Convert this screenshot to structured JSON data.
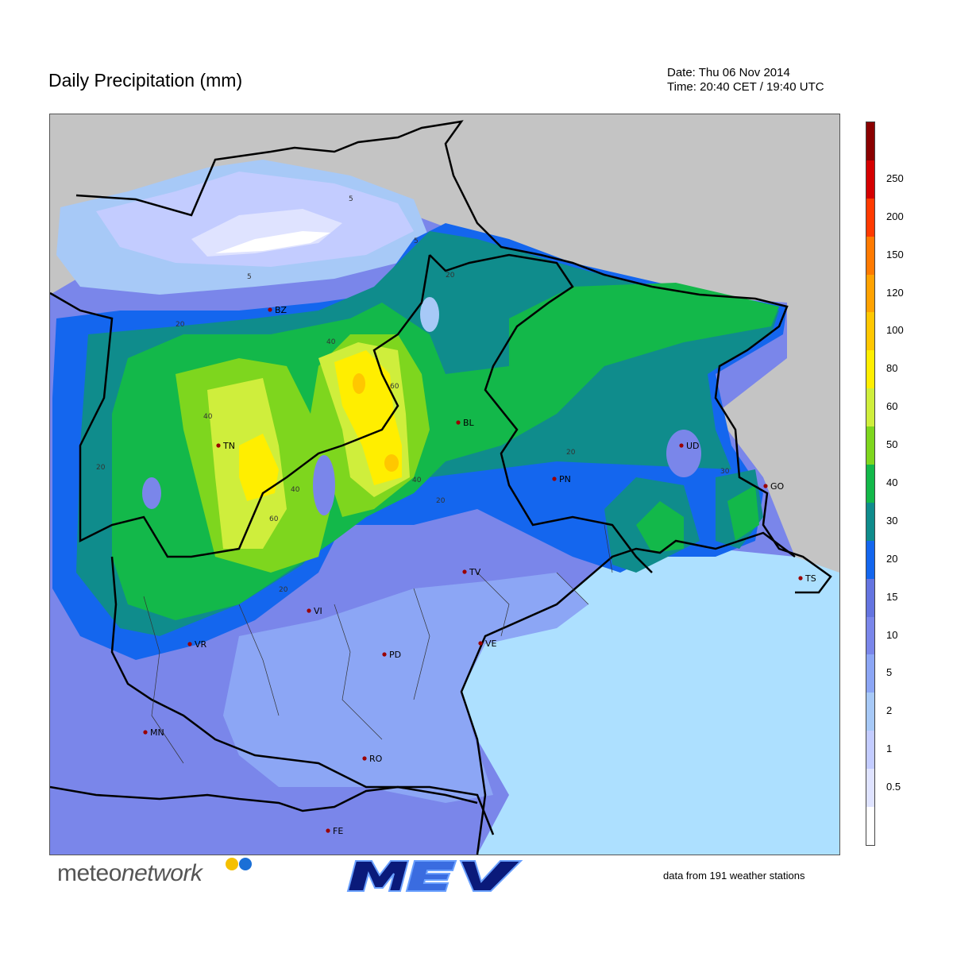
{
  "header": {
    "title": "Daily Precipitation (mm)",
    "date_line": "Date: Thu 06 Nov 2014",
    "time_line": "Time: 20:40 CET / 19:40 UTC"
  },
  "colorbar": {
    "levels": [
      {
        "label": "",
        "color": "#ffffff"
      },
      {
        "label": "0.5",
        "color": "#dfe3ff"
      },
      {
        "label": "1",
        "color": "#c3ccff"
      },
      {
        "label": "2",
        "color": "#a7c9f7"
      },
      {
        "label": "5",
        "color": "#8ca6f5"
      },
      {
        "label": "10",
        "color": "#7a86ea"
      },
      {
        "label": "15",
        "color": "#6474e0"
      },
      {
        "label": "20",
        "color": "#1466ee"
      },
      {
        "label": "30",
        "color": "#0f8c8c"
      },
      {
        "label": "40",
        "color": "#13b84a"
      },
      {
        "label": "50",
        "color": "#7ed61e"
      },
      {
        "label": "60",
        "color": "#cfee3c"
      },
      {
        "label": "80",
        "color": "#ffee00"
      },
      {
        "label": "100",
        "color": "#ffc700"
      },
      {
        "label": "120",
        "color": "#ffa200"
      },
      {
        "label": "150",
        "color": "#ff7a00"
      },
      {
        "label": "200",
        "color": "#ff3a00"
      },
      {
        "label": "250",
        "color": "#d40000"
      },
      {
        "label": "",
        "color": "#8a0000"
      }
    ]
  },
  "map": {
    "cities": [
      {
        "code": "BZ"
      },
      {
        "code": "TN"
      },
      {
        "code": "BL"
      },
      {
        "code": "UD"
      },
      {
        "code": "PN"
      },
      {
        "code": "GO"
      },
      {
        "code": "TS"
      },
      {
        "code": "TV"
      },
      {
        "code": "VE"
      },
      {
        "code": "VI"
      },
      {
        "code": "VR"
      },
      {
        "code": "PD"
      },
      {
        "code": "MN"
      },
      {
        "code": "RO"
      },
      {
        "code": "FE"
      }
    ],
    "contour_labels": [
      "5",
      "5",
      "5",
      "20",
      "40",
      "40",
      "20",
      "60",
      "40",
      "40",
      "60",
      "20",
      "20",
      "20",
      "20",
      "30"
    ]
  },
  "footer": {
    "brand_plain": "meteo",
    "brand_italic": "network",
    "stations_text": "data from 191 weather stations"
  }
}
